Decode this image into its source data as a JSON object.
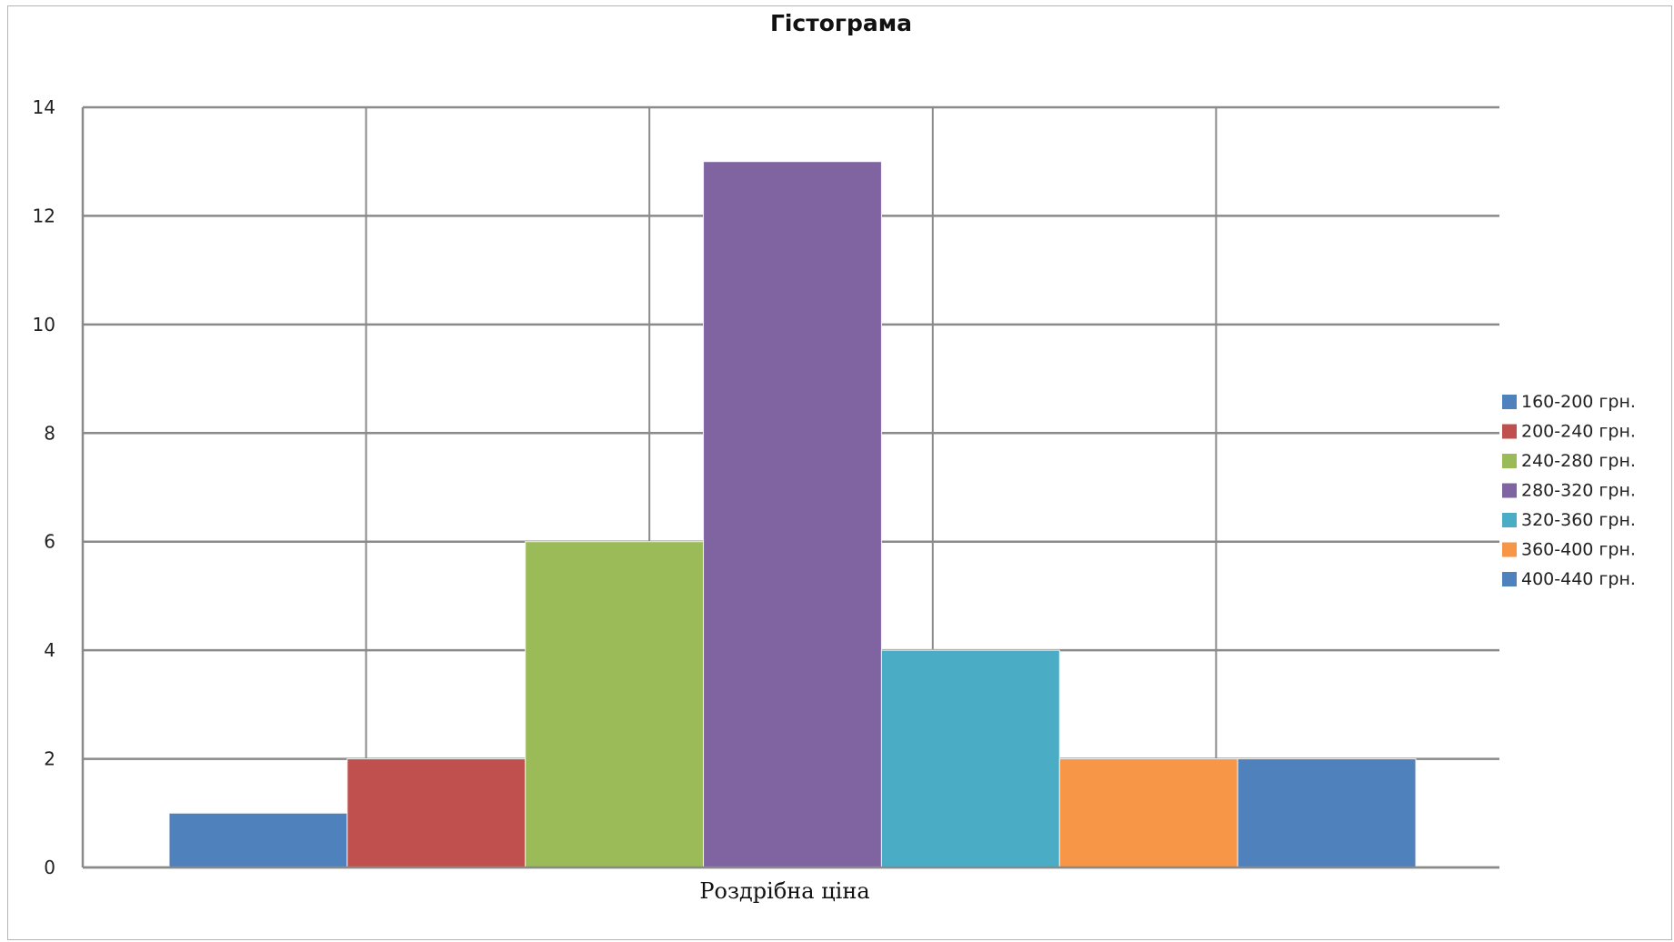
{
  "chart_data": {
    "type": "bar",
    "title": "Гістограма",
    "xlabel": "Роздрібна ціна",
    "ylabel": "",
    "ylim": [
      0,
      14
    ],
    "yticks": [
      0,
      2,
      4,
      6,
      8,
      10,
      12,
      14
    ],
    "grid": true,
    "legend_position": "right",
    "categories": [
      "Роздрібна ціна"
    ],
    "series": [
      {
        "name": "160-200 грн.",
        "values": [
          1
        ],
        "color": "#4f81bd"
      },
      {
        "name": "200-240 грн.",
        "values": [
          2
        ],
        "color": "#c0504d"
      },
      {
        "name": "240-280 грн.",
        "values": [
          6
        ],
        "color": "#9bbb59"
      },
      {
        "name": "280-320 грн.",
        "values": [
          13
        ],
        "color": "#8064a2"
      },
      {
        "name": "320-360 грн.",
        "values": [
          4
        ],
        "color": "#4bacc6"
      },
      {
        "name": "360-400 грн.",
        "values": [
          2
        ],
        "color": "#f79646"
      },
      {
        "name": "400-440 грн.",
        "values": [
          2
        ],
        "color": "#4f81bd"
      }
    ]
  }
}
